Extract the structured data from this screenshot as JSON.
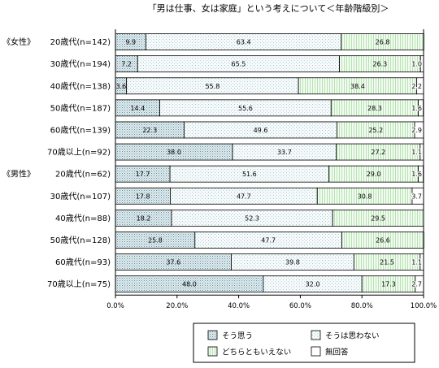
{
  "chart_data": {
    "type": "bar",
    "orientation": "horizontal",
    "stacked": true,
    "percent": true,
    "title": "「男は仕事、女は家庭」という考えについて＜年齢階級別＞",
    "group_labels": [
      "《女性》",
      "《男性》"
    ],
    "categories": [
      "20歳代(n=142)",
      "30歳代(n=194)",
      "40歳代(n=138)",
      "50歳代(n=187)",
      "60歳代(n=139)",
      "70歳以上(n=92)",
      "20歳代(n=62)",
      "30歳代(n=107)",
      "40歳代(n=88)",
      "50歳代(n=128)",
      "60歳代(n=93)",
      "70歳以上(n=75)"
    ],
    "groups": [
      0,
      0,
      0,
      0,
      0,
      0,
      1,
      1,
      1,
      1,
      1,
      1
    ],
    "series": [
      {
        "name": "そう思う",
        "color": "#dfe9ec",
        "pattern": "dots-dense",
        "values": [
          9.9,
          7.2,
          3.6,
          14.4,
          22.3,
          38.0,
          17.7,
          17.8,
          18.2,
          25.8,
          37.6,
          48.0
        ]
      },
      {
        "name": "そうは思わない",
        "color": "#f4f9fa",
        "pattern": "dots-sparse",
        "values": [
          63.4,
          65.5,
          55.8,
          55.6,
          49.6,
          33.7,
          51.6,
          47.7,
          52.3,
          47.7,
          39.8,
          32.0
        ]
      },
      {
        "name": "どちらともいえない",
        "color": "#e6f7e4",
        "pattern": "lines-vertical",
        "values": [
          26.8,
          26.3,
          38.4,
          28.3,
          25.2,
          27.2,
          29.0,
          30.8,
          29.5,
          26.6,
          21.5,
          17.3
        ]
      },
      {
        "name": "無回答",
        "color": "#ffffff",
        "pattern": "none",
        "values": [
          0.0,
          1.0,
          2.2,
          1.6,
          2.9,
          1.1,
          1.6,
          3.7,
          0.0,
          0.0,
          1.1,
          2.7
        ]
      }
    ],
    "value_labels": [
      [
        "9.9",
        "63.4",
        "26.8",
        ""
      ],
      [
        "7.2",
        "65.5",
        "26.3",
        "1.0"
      ],
      [
        "3.6",
        "55.8",
        "38.4",
        "2.2"
      ],
      [
        "14.4",
        "55.6",
        "28.3",
        "1.6"
      ],
      [
        "22.3",
        "49.6",
        "25.2",
        "2.9"
      ],
      [
        "38.0",
        "33.7",
        "27.2",
        "1.1"
      ],
      [
        "17.7",
        "51.6",
        "29.0",
        "1.6"
      ],
      [
        "17.8",
        "47.7",
        "30.8",
        "3.7"
      ],
      [
        "18.2",
        "52.3",
        "29.5",
        ""
      ],
      [
        "25.8",
        "47.7",
        "26.6",
        ""
      ],
      [
        "37.6",
        "39.8",
        "21.5",
        "1.1"
      ],
      [
        "48.0",
        "32.0",
        "17.3",
        "2.7"
      ]
    ],
    "xlim": [
      0,
      100
    ],
    "xticks": [
      0,
      20,
      40,
      60,
      80,
      100
    ],
    "xtick_labels": [
      "0.0%",
      "20.0%",
      "40.0%",
      "60.0%",
      "80.0%",
      "100.0%"
    ],
    "legend_position": "bottom-center",
    "grid": false
  }
}
